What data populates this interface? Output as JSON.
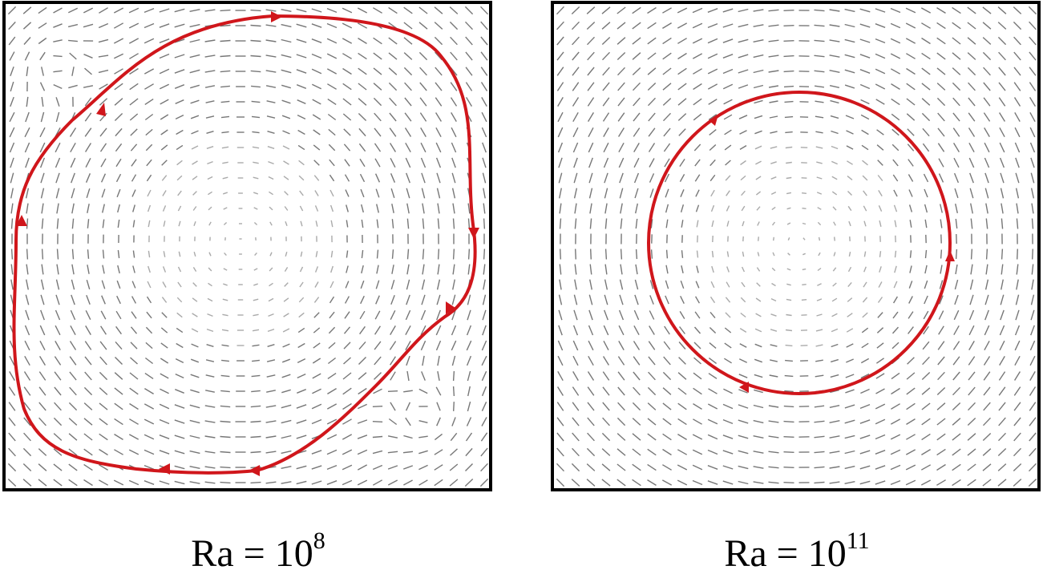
{
  "panels": [
    {
      "caption": {
        "base": "Ra = 10",
        "exponent": "8"
      }
    },
    {
      "caption": {
        "base": "Ra = 10",
        "exponent": "11"
      }
    }
  ]
}
